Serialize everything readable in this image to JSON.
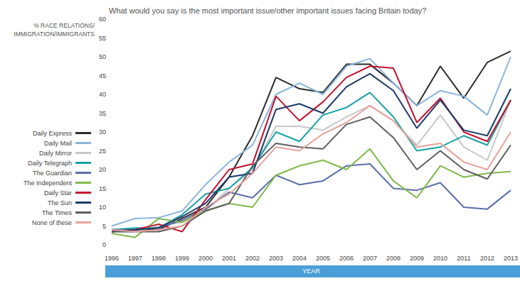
{
  "chart_data": {
    "type": "line",
    "title": "What would you say is the most important issue/other important issues facing Britain today?",
    "y_label": "% RACE RELATIONS/\nIMMIGRATION/IMMIGRANTS",
    "x_label": "YEAR",
    "categories": [
      "1996",
      "1997",
      "1998",
      "1999",
      "2000",
      "2001",
      "2002",
      "2003",
      "2004",
      "2005",
      "2006",
      "2007",
      "2008",
      "2009",
      "2010",
      "2011",
      "2012",
      "2013"
    ],
    "series": [
      {
        "name": "Daily Express",
        "color": "#2b2b2b",
        "values": [
          4,
          4,
          4,
          7,
          10,
          18,
          29,
          44.5,
          41.5,
          40.5,
          48,
          48,
          43,
          37,
          47.5,
          39,
          48.5,
          51.5
        ]
      },
      {
        "name": "Daily Mail",
        "color": "#8ab4dc",
        "values": [
          5,
          7,
          7.2,
          9,
          16,
          22,
          26.5,
          40,
          43,
          40,
          47.5,
          49.5,
          43,
          37,
          41,
          39.5,
          34.5,
          50
        ]
      },
      {
        "name": "Daily Mirror",
        "color": "#c8c8c8",
        "values": [
          3.5,
          3.5,
          5,
          6,
          9,
          15,
          20,
          31.5,
          31.5,
          30.5,
          34,
          37,
          33,
          26.5,
          34.5,
          26,
          22.5,
          38.5
        ]
      },
      {
        "name": "Daily Telegraph",
        "color": "#17a3a5",
        "values": [
          4,
          4.5,
          4.5,
          8,
          13.5,
          15,
          20.5,
          30,
          27.5,
          34.5,
          36.5,
          40.5,
          34,
          25,
          26,
          29,
          26.5,
          38.5
        ]
      },
      {
        "name": "The Guardian",
        "color": "#5a6ea9",
        "values": [
          4,
          4,
          4.5,
          6.5,
          9.5,
          14,
          12.5,
          18.5,
          16,
          17,
          21,
          21.5,
          15,
          14.5,
          16.5,
          10,
          9.5,
          14.5
        ]
      },
      {
        "name": "The Independent",
        "color": "#80b94a",
        "values": [
          3,
          2,
          7,
          6,
          9,
          11,
          10,
          18.5,
          21,
          22.5,
          20,
          25.5,
          17,
          12.5,
          21,
          18,
          19,
          19.5
        ]
      },
      {
        "name": "Daily Star",
        "color": "#c3122f",
        "values": [
          3.5,
          4,
          5.5,
          3.5,
          12,
          20,
          21.5,
          39.5,
          33,
          38,
          44.5,
          47.5,
          47,
          32.5,
          39,
          30,
          27.5,
          38.5
        ]
      },
      {
        "name": "The Sun",
        "color": "#1d3a6a",
        "values": [
          3.5,
          4,
          4.5,
          7.5,
          11,
          18,
          19,
          36,
          37.5,
          35,
          42,
          45.5,
          41,
          31,
          38.5,
          30.5,
          29,
          41.5
        ]
      },
      {
        "name": "The Times",
        "color": "#5e5e5e",
        "values": [
          3.5,
          3.5,
          3.5,
          5,
          9,
          11,
          21,
          27,
          26,
          25.5,
          32,
          34,
          28.5,
          20,
          25,
          20,
          17.5,
          26.5
        ]
      },
      {
        "name": "None of these",
        "color": "#e8a29b",
        "values": [
          4,
          3.5,
          4,
          5,
          10,
          13.5,
          19,
          26,
          25,
          29.5,
          32.5,
          37,
          33,
          26,
          27,
          22,
          20,
          30
        ]
      }
    ],
    "ylim": [
      0,
      60
    ],
    "yticks": [
      0,
      5,
      10,
      15,
      20,
      25,
      30,
      35,
      40,
      45,
      50,
      55,
      60
    ],
    "grid": false,
    "legend": "left"
  }
}
